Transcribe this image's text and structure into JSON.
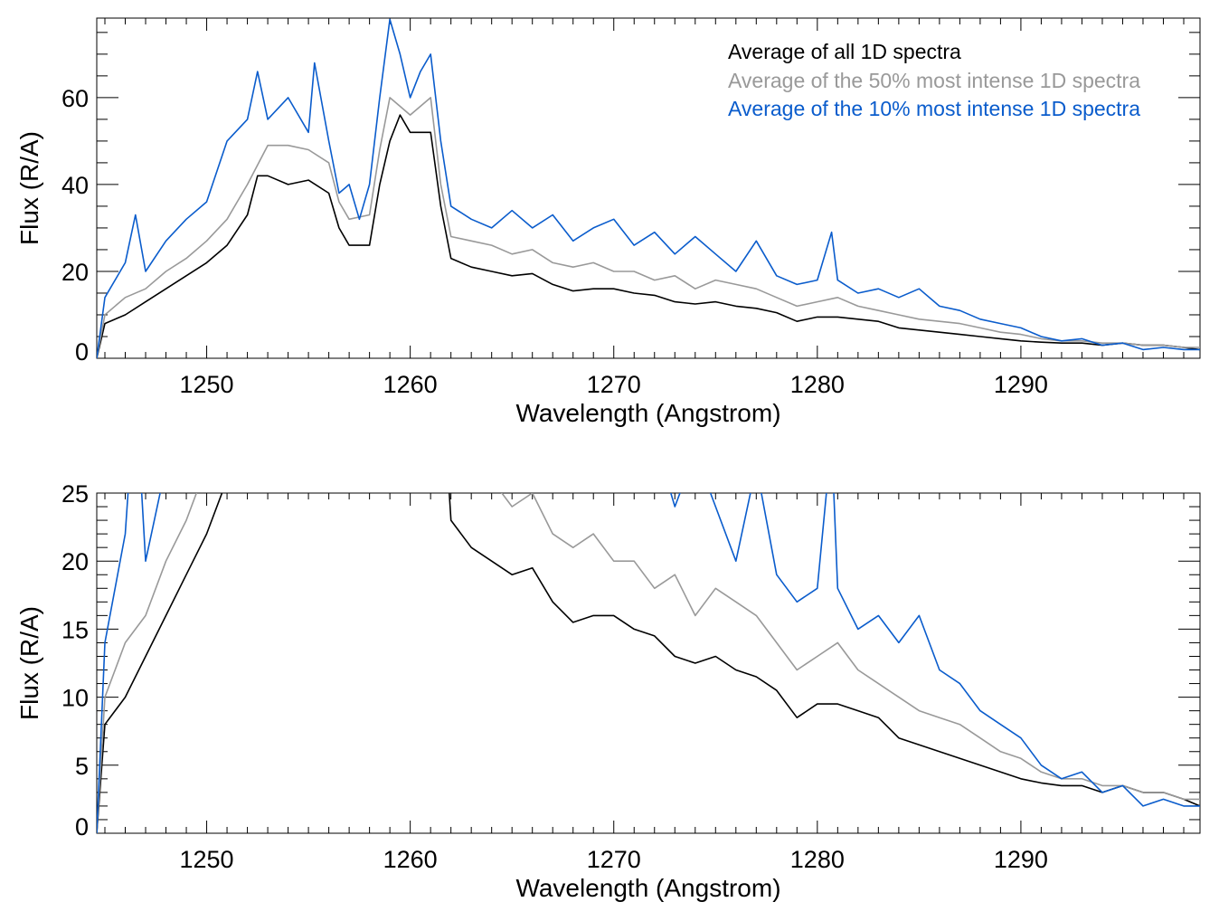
{
  "chart_data": [
    {
      "type": "line",
      "xlabel": "Wavelength (Angstrom)",
      "ylabel": "Flux (R/A)",
      "xlim": [
        1244.6,
        1298.8
      ],
      "ylim": [
        0,
        78.3
      ],
      "xticks": [
        1250,
        1260,
        1270,
        1280,
        1290
      ],
      "yticks": [
        0,
        20,
        40,
        60
      ],
      "grid": false,
      "legend_position": "top-right",
      "legend": [
        {
          "label": "Average of all 1D spectra",
          "color": "#000000"
        },
        {
          "label": "Average of the 50% most intense 1D spectra",
          "color": "#999999"
        },
        {
          "label": "Average of the 10% most intense 1D spectra",
          "color": "#0a5ccc"
        }
      ]
    },
    {
      "type": "line",
      "xlabel": "Wavelength (Angstrom)",
      "ylabel": "Flux (R/A)",
      "xlim": [
        1244.6,
        1298.8
      ],
      "ylim": [
        0,
        25
      ],
      "xticks": [
        1250,
        1260,
        1270,
        1280,
        1290
      ],
      "yticks": [
        0,
        5,
        10,
        15,
        20,
        25
      ],
      "grid": false
    }
  ],
  "series": [
    {
      "name": "Average of all 1D spectra",
      "color": "#000000",
      "x": [
        1244.6,
        1245,
        1246,
        1247,
        1248,
        1249,
        1250,
        1251,
        1252,
        1252.5,
        1253,
        1254,
        1255,
        1256,
        1256.5,
        1257,
        1258,
        1258.5,
        1259,
        1259.5,
        1260,
        1261,
        1261.5,
        1262,
        1263,
        1264,
        1265,
        1266,
        1267,
        1268,
        1269,
        1270,
        1271,
        1272,
        1273,
        1274,
        1275,
        1276,
        1277,
        1278,
        1279,
        1280,
        1281,
        1282,
        1283,
        1284,
        1285,
        1286,
        1287,
        1288,
        1289,
        1290,
        1291,
        1292,
        1293,
        1294,
        1295,
        1296,
        1297,
        1298,
        1298.8
      ],
      "y": [
        0,
        8,
        10,
        13,
        16,
        19,
        22,
        26,
        33,
        42,
        42,
        40,
        41,
        38,
        30,
        26,
        26,
        40,
        50,
        56,
        52,
        52,
        35,
        23,
        21,
        20,
        19,
        19.5,
        17,
        15.5,
        16,
        16,
        15,
        14.5,
        13,
        12.5,
        13,
        12,
        11.5,
        10.5,
        8.5,
        9.5,
        9.5,
        9,
        8.5,
        7,
        6.5,
        6,
        5.5,
        5,
        4.5,
        4,
        3.7,
        3.5,
        3.5,
        3,
        3.5,
        3,
        3,
        2.5,
        2
      ]
    },
    {
      "name": "Average of the 50% most intense 1D spectra",
      "color": "#999999",
      "x": [
        1244.6,
        1245,
        1246,
        1247,
        1248,
        1249,
        1250,
        1251,
        1252,
        1253,
        1254,
        1255,
        1256,
        1256.5,
        1257,
        1258,
        1258.5,
        1259,
        1259.5,
        1260,
        1261,
        1261.5,
        1262,
        1263,
        1264,
        1265,
        1266,
        1267,
        1268,
        1269,
        1270,
        1271,
        1272,
        1273,
        1274,
        1275,
        1276,
        1277,
        1278,
        1279,
        1280,
        1281,
        1282,
        1283,
        1284,
        1285,
        1286,
        1287,
        1288,
        1289,
        1290,
        1291,
        1292,
        1293,
        1294,
        1295,
        1296,
        1297,
        1298,
        1298.8
      ],
      "y": [
        0,
        10,
        14,
        16,
        20,
        23,
        27,
        32,
        40,
        49,
        49,
        48,
        45,
        36,
        32,
        33,
        48,
        60,
        58,
        56,
        60,
        40,
        28,
        27,
        26,
        24,
        25,
        22,
        21,
        22,
        20,
        20,
        18,
        19,
        16,
        18,
        17,
        16,
        14,
        12,
        13,
        14,
        12,
        11,
        10,
        9,
        8.5,
        8,
        7,
        6,
        5.5,
        4.5,
        4,
        4,
        3.5,
        3.5,
        3,
        3,
        2.5,
        2.5
      ]
    },
    {
      "name": "Average of the 10% most intense 1D spectra",
      "color": "#0a5ccc",
      "x": [
        1244.6,
        1245,
        1246,
        1246.5,
        1247,
        1248,
        1249,
        1250,
        1251,
        1252,
        1252.5,
        1253,
        1254,
        1255,
        1255.3,
        1256,
        1256.5,
        1257,
        1257.5,
        1258,
        1258.5,
        1259,
        1259.5,
        1260,
        1260.5,
        1261,
        1261.5,
        1262,
        1263,
        1264,
        1265,
        1266,
        1267,
        1268,
        1269,
        1270,
        1271,
        1272,
        1273,
        1274,
        1275,
        1276,
        1277,
        1278,
        1279,
        1280,
        1280.7,
        1281,
        1282,
        1283,
        1284,
        1285,
        1286,
        1287,
        1288,
        1289,
        1290,
        1291,
        1292,
        1293,
        1294,
        1295,
        1296,
        1297,
        1298,
        1298.8
      ],
      "y": [
        0,
        14,
        22,
        33,
        20,
        27,
        32,
        36,
        50,
        55,
        66,
        55,
        60,
        52,
        68,
        50,
        38,
        40,
        32,
        40,
        60,
        78,
        70,
        60,
        66,
        70,
        50,
        35,
        32,
        30,
        34,
        30,
        33,
        27,
        30,
        32,
        26,
        29,
        24,
        28,
        24,
        20,
        27,
        19,
        17,
        18,
        29,
        18,
        15,
        16,
        14,
        16,
        12,
        11,
        9,
        8,
        7,
        5,
        4,
        4.5,
        3,
        3.5,
        2,
        2.5,
        2,
        2
      ]
    }
  ]
}
